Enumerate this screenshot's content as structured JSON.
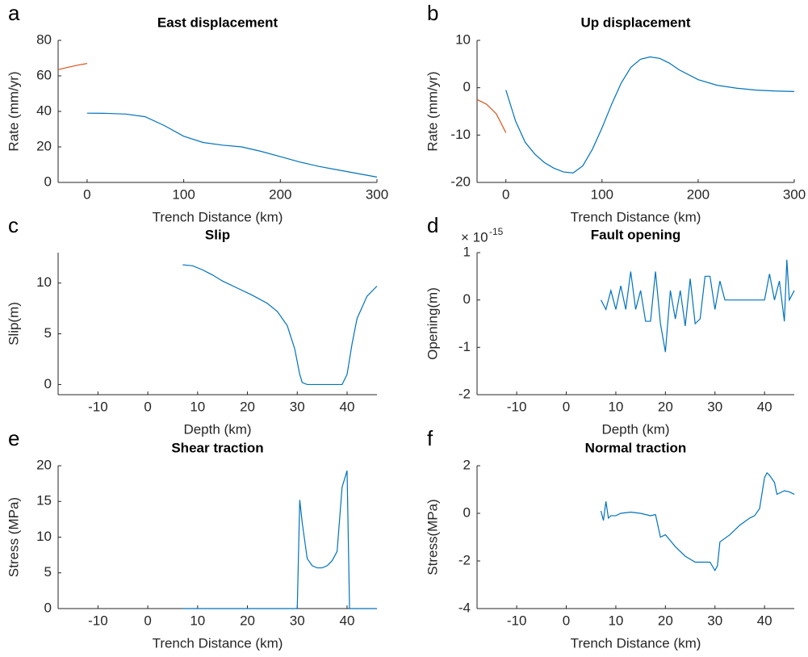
{
  "chart_data": [
    {
      "type": "line",
      "panel": "a",
      "title": "East displacement",
      "xlabel": "Trench Distance (km)",
      "ylabel": "Rate (mm/yr)",
      "xlim": [
        -30,
        300
      ],
      "ylim": [
        0,
        80
      ],
      "xticks": [
        0,
        100,
        200,
        300
      ],
      "yticks": [
        0,
        20,
        40,
        60,
        80
      ],
      "series": [
        {
          "color": "#D95319",
          "x": [
            -30,
            -20,
            -10,
            0
          ],
          "values": [
            63.5,
            64.8,
            66,
            67
          ]
        },
        {
          "color": "#0072BD",
          "x": [
            0,
            20,
            40,
            60,
            80,
            100,
            120,
            140,
            160,
            180,
            200,
            220,
            240,
            260,
            280,
            300
          ],
          "values": [
            39,
            38.9,
            38.5,
            37,
            32,
            26,
            22.5,
            21,
            20,
            17.5,
            14.5,
            11.5,
            9,
            7,
            5,
            3
          ]
        }
      ]
    },
    {
      "type": "line",
      "panel": "b",
      "title": "Up displacement",
      "xlabel": "Trench Distance (km)",
      "ylabel": "Rate (mm/yr)",
      "xlim": [
        -30,
        300
      ],
      "ylim": [
        -20,
        10
      ],
      "xticks": [
        0,
        100,
        200,
        300
      ],
      "yticks": [
        -20,
        -10,
        0,
        10
      ],
      "series": [
        {
          "color": "#D95319",
          "x": [
            -30,
            -20,
            -10,
            0
          ],
          "values": [
            -2.5,
            -3.5,
            -5.5,
            -9.5
          ]
        },
        {
          "color": "#0072BD",
          "x": [
            0,
            10,
            20,
            30,
            40,
            50,
            60,
            70,
            80,
            90,
            100,
            110,
            120,
            130,
            140,
            150,
            160,
            170,
            180,
            200,
            220,
            240,
            260,
            280,
            300
          ],
          "values": [
            -0.5,
            -7,
            -11.5,
            -14,
            -15.8,
            -17,
            -17.8,
            -18,
            -16.5,
            -13,
            -8.5,
            -3.5,
            1,
            4.3,
            6,
            6.5,
            6.2,
            5.2,
            3.8,
            1.7,
            0.5,
            -0.1,
            -0.5,
            -0.7,
            -0.8
          ]
        }
      ]
    },
    {
      "type": "line",
      "panel": "c",
      "title": "Slip",
      "xlabel": "Depth (km)",
      "ylabel": "Slip(m)",
      "xlim": [
        -18,
        46
      ],
      "ylim": [
        -1,
        13
      ],
      "xticks": [
        -10,
        0,
        10,
        20,
        30,
        40
      ],
      "yticks": [
        0,
        5,
        10
      ],
      "series": [
        {
          "color": "#0072BD",
          "x": [
            7,
            9,
            11,
            13,
            15,
            18,
            21,
            24,
            26,
            28,
            29.5,
            30.5,
            31,
            32,
            39,
            40,
            41,
            42,
            44,
            46
          ],
          "values": [
            11.8,
            11.7,
            11.3,
            10.8,
            10.2,
            9.5,
            8.8,
            8,
            7.2,
            5.8,
            3.5,
            1,
            0.2,
            0,
            0,
            1,
            4,
            6.5,
            8.7,
            9.7
          ]
        }
      ]
    },
    {
      "type": "line",
      "panel": "d",
      "title": "Fault opening",
      "xlabel": "Depth (km)",
      "ylabel": "Opening(m)",
      "y_multiplier": "× 10",
      "y_multiplier_exponent": "-15",
      "xlim": [
        -18,
        46
      ],
      "ylim": [
        -2,
        1
      ],
      "xticks": [
        -10,
        0,
        10,
        20,
        30,
        40
      ],
      "yticks": [
        -2,
        -1,
        0,
        1
      ],
      "series": [
        {
          "color": "#0072BD",
          "x": [
            7,
            8,
            9,
            10,
            11,
            12,
            13,
            14,
            15,
            16,
            17,
            18,
            19,
            20,
            21,
            22,
            23,
            24,
            25,
            26,
            27,
            28,
            29,
            30,
            31,
            32,
            40,
            41,
            42,
            43,
            44,
            44.5,
            45,
            46
          ],
          "values": [
            0,
            -0.2,
            0.2,
            -0.2,
            0.3,
            -0.2,
            0.6,
            -0.2,
            0.2,
            -0.45,
            -0.45,
            0.6,
            -0.5,
            -1.1,
            0.2,
            -0.4,
            0.2,
            -0.55,
            0.45,
            -0.5,
            -0.4,
            0.5,
            0.5,
            -0.2,
            0.4,
            0,
            0,
            0.55,
            0,
            0.4,
            -0.45,
            0.85,
            0,
            0.2
          ]
        }
      ]
    },
    {
      "type": "line",
      "panel": "e",
      "title": "Shear traction",
      "xlabel": "Trench Distance (km)",
      "ylabel": "Stress (MPa)",
      "xlim": [
        -18,
        46
      ],
      "ylim": [
        0,
        20
      ],
      "xticks": [
        -10,
        0,
        10,
        20,
        30,
        40
      ],
      "yticks": [
        0,
        5,
        10,
        15,
        20
      ],
      "series": [
        {
          "color": "#0072BD",
          "x": [
            7,
            30,
            30.5,
            31,
            32,
            33,
            34,
            35,
            36,
            37,
            38,
            39,
            40,
            40.5,
            46
          ],
          "values": [
            0,
            0,
            15.2,
            12,
            7,
            6,
            5.7,
            5.7,
            6,
            6.7,
            8,
            17,
            19.3,
            0,
            0
          ]
        }
      ]
    },
    {
      "type": "line",
      "panel": "f",
      "title": "Normal traction",
      "xlabel": "Trench Distance (km)",
      "ylabel": "Stress(MPa)",
      "xlim": [
        -18,
        46
      ],
      "ylim": [
        -4,
        2
      ],
      "xticks": [
        -10,
        0,
        10,
        20,
        30,
        40
      ],
      "yticks": [
        -4,
        -2,
        0,
        2
      ],
      "series": [
        {
          "color": "#0072BD",
          "x": [
            7,
            7.5,
            8,
            8.5,
            9,
            10,
            11,
            13,
            15,
            17,
            18,
            19,
            20,
            22,
            24,
            26,
            28,
            29,
            30,
            30.5,
            31,
            33,
            35,
            37,
            38,
            39,
            40,
            40.5,
            41,
            42,
            42.5,
            44,
            45,
            46
          ],
          "values": [
            0.1,
            -0.3,
            0.5,
            -0.2,
            -0.1,
            -0.1,
            0,
            0.05,
            0,
            -0.1,
            -0.05,
            -1,
            -0.9,
            -1.4,
            -1.8,
            -2.05,
            -2.05,
            -2.05,
            -2.4,
            -2.2,
            -1.2,
            -0.9,
            -0.5,
            -0.2,
            -0.1,
            0.2,
            1.5,
            1.7,
            1.6,
            1.3,
            0.8,
            0.95,
            0.9,
            0.8
          ]
        }
      ]
    }
  ]
}
